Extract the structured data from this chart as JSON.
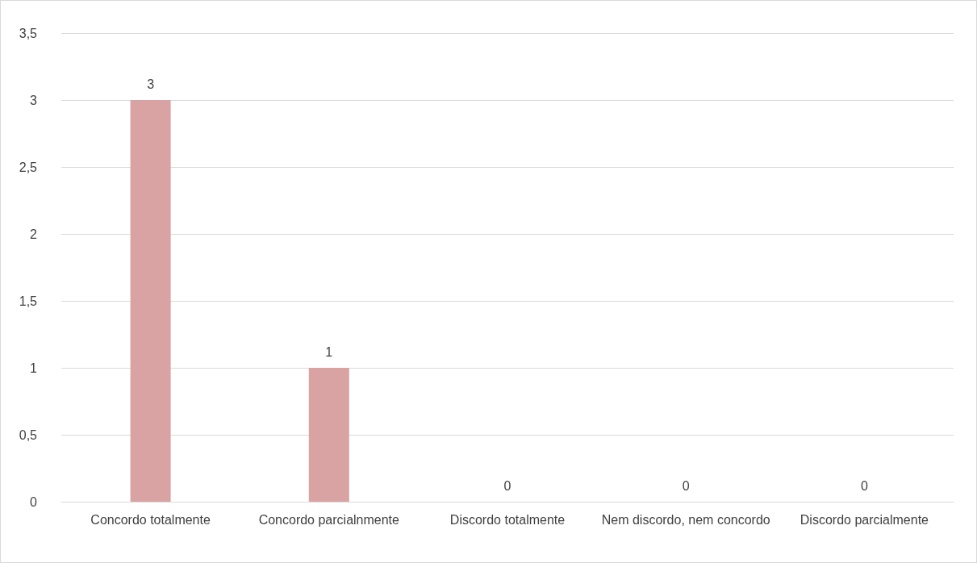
{
  "chart_data": {
    "type": "bar",
    "categories": [
      "Concordo totalmente",
      "Concordo parcialnmente",
      "Discordo totalmente",
      "Nem discordo, nem concordo",
      "Discordo parcialmente"
    ],
    "values": [
      3,
      1,
      0,
      0,
      0
    ],
    "color": "#d9a3a3",
    "ylim": [
      0,
      3.5
    ],
    "yticks": [
      0,
      {
        "value": 0.5,
        "label": "0,5"
      },
      1,
      {
        "value": 1.5,
        "label": "1,5"
      },
      2,
      {
        "value": 2.5,
        "label": "2,5"
      },
      3,
      {
        "value": 3.5,
        "label": "3,5"
      }
    ],
    "grid": "y",
    "data_labels": true
  }
}
